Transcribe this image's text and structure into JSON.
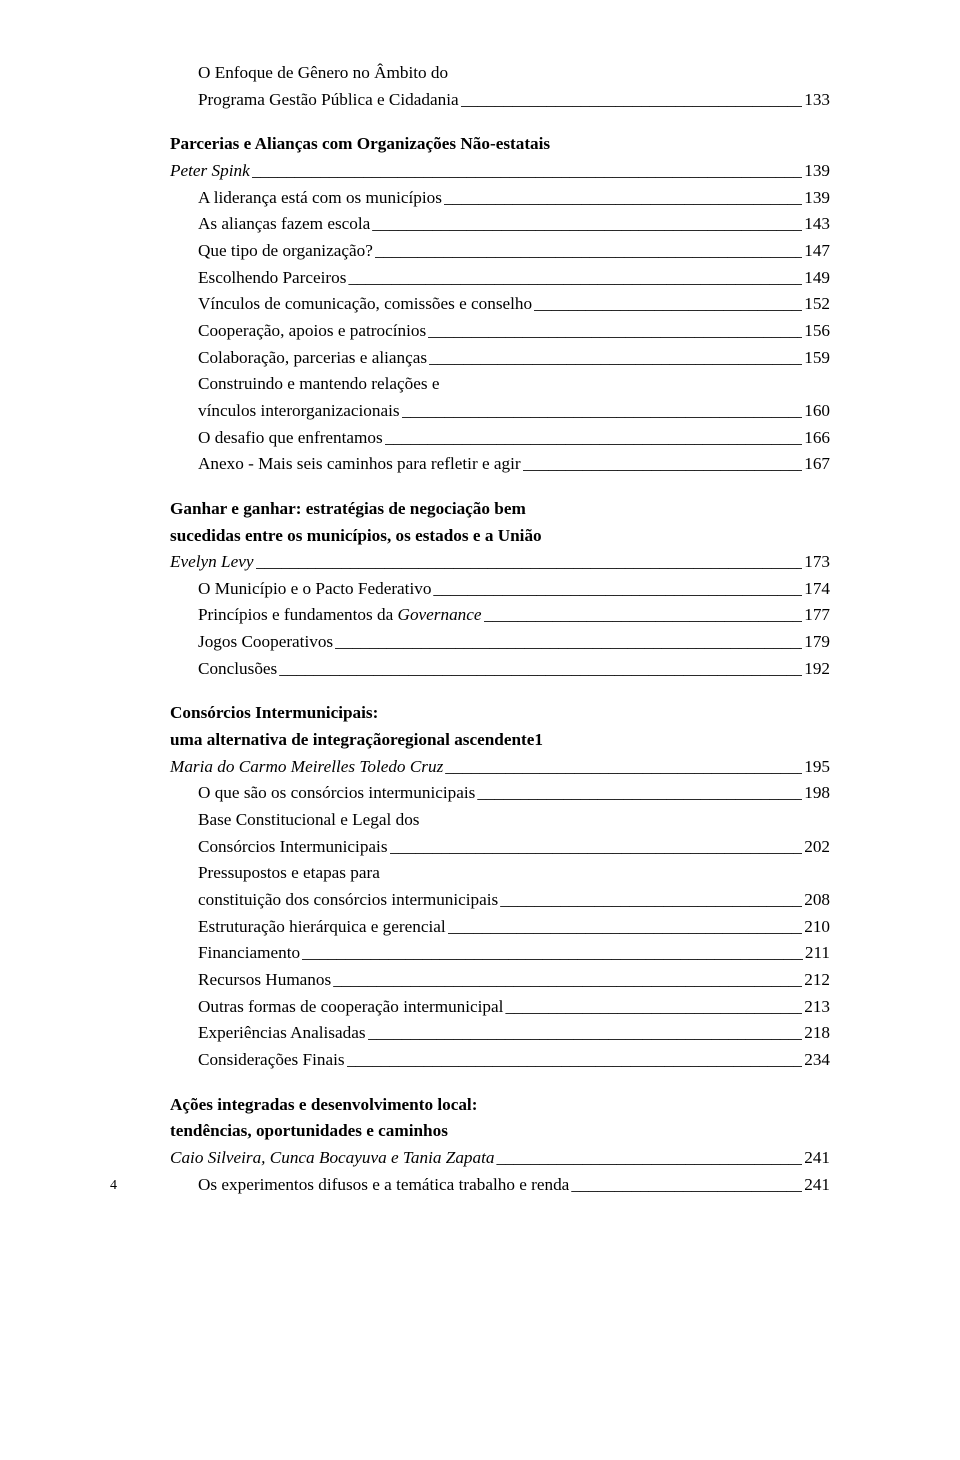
{
  "page_number": "4",
  "colors": {
    "text": "#000000",
    "bg": "#ffffff"
  },
  "typography": {
    "font_family": "Georgia serif",
    "base_size_pt": 13,
    "line_height": 1.55
  },
  "toc": [
    {
      "kind": "plain",
      "indent": 1,
      "text": "O Enfoque de Gênero no Âmbito do"
    },
    {
      "kind": "entry",
      "indent": 1,
      "text": "Programa Gestão Pública e Cidadania",
      "page": "133"
    },
    {
      "kind": "gap"
    },
    {
      "kind": "plain",
      "indent": 0,
      "bold": true,
      "text": "Parcerias e Alianças com Organizações Não-estatais"
    },
    {
      "kind": "entry",
      "indent": 0,
      "italic": true,
      "text": "Peter Spink",
      "page": "139"
    },
    {
      "kind": "entry",
      "indent": 1,
      "text": "A liderança está com os municípios",
      "page": "139"
    },
    {
      "kind": "entry",
      "indent": 1,
      "text": "As alianças fazem escola",
      "page": "143"
    },
    {
      "kind": "entry",
      "indent": 1,
      "text": "Que tipo de organização?",
      "page": "147"
    },
    {
      "kind": "entry",
      "indent": 1,
      "text": "Escolhendo Parceiros",
      "page": "149"
    },
    {
      "kind": "entry",
      "indent": 1,
      "text": "Vínculos de comunicação, comissões e conselho",
      "page": "152"
    },
    {
      "kind": "entry",
      "indent": 1,
      "text": "Cooperação, apoios e patrocínios",
      "page": "156"
    },
    {
      "kind": "entry",
      "indent": 1,
      "text": "Colaboração, parcerias e alianças",
      "page": "159"
    },
    {
      "kind": "plain",
      "indent": 1,
      "text": "Construindo e mantendo relações e"
    },
    {
      "kind": "entry",
      "indent": 1,
      "text": "vínculos interorganizacionais",
      "page": "160"
    },
    {
      "kind": "entry",
      "indent": 1,
      "text": "O desafio que enfrentamos",
      "page": "166"
    },
    {
      "kind": "entry",
      "indent": 1,
      "text": "Anexo - Mais seis caminhos para refletir e agir",
      "page": "167"
    },
    {
      "kind": "gap"
    },
    {
      "kind": "plain",
      "indent": 0,
      "bold": true,
      "text": "Ganhar e ganhar: estratégias de negociação bem"
    },
    {
      "kind": "plain",
      "indent": 0,
      "bold": true,
      "text": "sucedidas entre os municípios, os estados e a União"
    },
    {
      "kind": "entry",
      "indent": 0,
      "italic": true,
      "text": "Evelyn Levy",
      "page": "173"
    },
    {
      "kind": "entry",
      "indent": 1,
      "text": "O Município e o Pacto Federativo",
      "page": "174"
    },
    {
      "kind": "entry",
      "indent": 1,
      "italic_word": "Governance",
      "text_pre": "Princípios e fundamentos da ",
      "page": "177"
    },
    {
      "kind": "entry",
      "indent": 1,
      "text": "Jogos Cooperativos",
      "page": "179"
    },
    {
      "kind": "entry",
      "indent": 1,
      "text": "Conclusões",
      "page": "192"
    },
    {
      "kind": "gap"
    },
    {
      "kind": "plain",
      "indent": 0,
      "bold": true,
      "text": "Consórcios Intermunicipais:"
    },
    {
      "kind": "plain",
      "indent": 0,
      "bold": true,
      "text": "uma alternativa de integraçãoregional ascendente1"
    },
    {
      "kind": "entry",
      "indent": 0,
      "italic": true,
      "text": "Maria do Carmo Meirelles Toledo Cruz",
      "page": "195"
    },
    {
      "kind": "entry",
      "indent": 1,
      "text": "O que são os consórcios intermunicipais",
      "page": "198"
    },
    {
      "kind": "plain",
      "indent": 1,
      "text": "Base Constitucional e Legal dos"
    },
    {
      "kind": "entry",
      "indent": 1,
      "text": "Consórcios Intermunicipais",
      "page": "202"
    },
    {
      "kind": "plain",
      "indent": 1,
      "text": "Pressupostos e etapas para"
    },
    {
      "kind": "entry",
      "indent": 1,
      "text": "constituição dos consórcios intermunicipais",
      "page": "208"
    },
    {
      "kind": "entry",
      "indent": 1,
      "text": "Estruturação hierárquica e gerencial",
      "page": "210"
    },
    {
      "kind": "entry",
      "indent": 1,
      "text": "Financiamento",
      "page": "211"
    },
    {
      "kind": "entry",
      "indent": 1,
      "text": "Recursos Humanos",
      "page": "212"
    },
    {
      "kind": "entry",
      "indent": 1,
      "text": "Outras formas de cooperação intermunicipal",
      "page": "213"
    },
    {
      "kind": "entry",
      "indent": 1,
      "text": "Experiências Analisadas",
      "page": "218"
    },
    {
      "kind": "entry",
      "indent": 1,
      "text": "Considerações Finais",
      "page": "234"
    },
    {
      "kind": "gap"
    },
    {
      "kind": "plain",
      "indent": 0,
      "bold": true,
      "text": "Ações integradas e desenvolvimento local:"
    },
    {
      "kind": "plain",
      "indent": 0,
      "bold": true,
      "text": "tendências, oportunidades e caminhos"
    },
    {
      "kind": "entry",
      "indent": 0,
      "italic": true,
      "text": "Caio Silveira, Cunca Bocayuva e Tania Zapata",
      "page": "241"
    },
    {
      "kind": "entry",
      "indent": 1,
      "text": "Os experimentos difusos e a temática trabalho e renda",
      "page": "241"
    }
  ]
}
